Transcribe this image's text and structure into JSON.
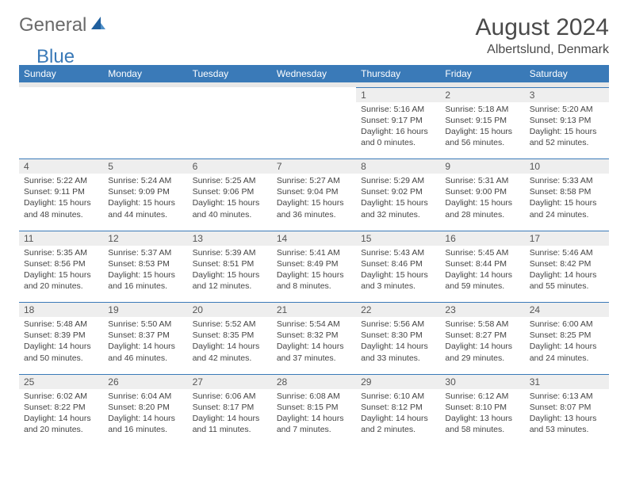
{
  "logo": {
    "text1": "General",
    "text2": "Blue"
  },
  "title": "August 2024",
  "location": "Albertslund, Denmark",
  "colors": {
    "header_bg": "#3a7ab8",
    "header_text": "#ffffff",
    "daynum_bg": "#eeeeee",
    "border": "#3a7ab8",
    "text": "#444444",
    "logo_gray": "#6a6a6a",
    "logo_blue": "#3a7ab8"
  },
  "day_headers": [
    "Sunday",
    "Monday",
    "Tuesday",
    "Wednesday",
    "Thursday",
    "Friday",
    "Saturday"
  ],
  "weeks": [
    {
      "nums": [
        "",
        "",
        "",
        "",
        "1",
        "2",
        "3"
      ],
      "cells": [
        null,
        null,
        null,
        null,
        {
          "sunrise": "5:16 AM",
          "sunset": "9:17 PM",
          "daylight": "16 hours and 0 minutes."
        },
        {
          "sunrise": "5:18 AM",
          "sunset": "9:15 PM",
          "daylight": "15 hours and 56 minutes."
        },
        {
          "sunrise": "5:20 AM",
          "sunset": "9:13 PM",
          "daylight": "15 hours and 52 minutes."
        }
      ]
    },
    {
      "nums": [
        "4",
        "5",
        "6",
        "7",
        "8",
        "9",
        "10"
      ],
      "cells": [
        {
          "sunrise": "5:22 AM",
          "sunset": "9:11 PM",
          "daylight": "15 hours and 48 minutes."
        },
        {
          "sunrise": "5:24 AM",
          "sunset": "9:09 PM",
          "daylight": "15 hours and 44 minutes."
        },
        {
          "sunrise": "5:25 AM",
          "sunset": "9:06 PM",
          "daylight": "15 hours and 40 minutes."
        },
        {
          "sunrise": "5:27 AM",
          "sunset": "9:04 PM",
          "daylight": "15 hours and 36 minutes."
        },
        {
          "sunrise": "5:29 AM",
          "sunset": "9:02 PM",
          "daylight": "15 hours and 32 minutes."
        },
        {
          "sunrise": "5:31 AM",
          "sunset": "9:00 PM",
          "daylight": "15 hours and 28 minutes."
        },
        {
          "sunrise": "5:33 AM",
          "sunset": "8:58 PM",
          "daylight": "15 hours and 24 minutes."
        }
      ]
    },
    {
      "nums": [
        "11",
        "12",
        "13",
        "14",
        "15",
        "16",
        "17"
      ],
      "cells": [
        {
          "sunrise": "5:35 AM",
          "sunset": "8:56 PM",
          "daylight": "15 hours and 20 minutes."
        },
        {
          "sunrise": "5:37 AM",
          "sunset": "8:53 PM",
          "daylight": "15 hours and 16 minutes."
        },
        {
          "sunrise": "5:39 AM",
          "sunset": "8:51 PM",
          "daylight": "15 hours and 12 minutes."
        },
        {
          "sunrise": "5:41 AM",
          "sunset": "8:49 PM",
          "daylight": "15 hours and 8 minutes."
        },
        {
          "sunrise": "5:43 AM",
          "sunset": "8:46 PM",
          "daylight": "15 hours and 3 minutes."
        },
        {
          "sunrise": "5:45 AM",
          "sunset": "8:44 PM",
          "daylight": "14 hours and 59 minutes."
        },
        {
          "sunrise": "5:46 AM",
          "sunset": "8:42 PM",
          "daylight": "14 hours and 55 minutes."
        }
      ]
    },
    {
      "nums": [
        "18",
        "19",
        "20",
        "21",
        "22",
        "23",
        "24"
      ],
      "cells": [
        {
          "sunrise": "5:48 AM",
          "sunset": "8:39 PM",
          "daylight": "14 hours and 50 minutes."
        },
        {
          "sunrise": "5:50 AM",
          "sunset": "8:37 PM",
          "daylight": "14 hours and 46 minutes."
        },
        {
          "sunrise": "5:52 AM",
          "sunset": "8:35 PM",
          "daylight": "14 hours and 42 minutes."
        },
        {
          "sunrise": "5:54 AM",
          "sunset": "8:32 PM",
          "daylight": "14 hours and 37 minutes."
        },
        {
          "sunrise": "5:56 AM",
          "sunset": "8:30 PM",
          "daylight": "14 hours and 33 minutes."
        },
        {
          "sunrise": "5:58 AM",
          "sunset": "8:27 PM",
          "daylight": "14 hours and 29 minutes."
        },
        {
          "sunrise": "6:00 AM",
          "sunset": "8:25 PM",
          "daylight": "14 hours and 24 minutes."
        }
      ]
    },
    {
      "nums": [
        "25",
        "26",
        "27",
        "28",
        "29",
        "30",
        "31"
      ],
      "cells": [
        {
          "sunrise": "6:02 AM",
          "sunset": "8:22 PM",
          "daylight": "14 hours and 20 minutes."
        },
        {
          "sunrise": "6:04 AM",
          "sunset": "8:20 PM",
          "daylight": "14 hours and 16 minutes."
        },
        {
          "sunrise": "6:06 AM",
          "sunset": "8:17 PM",
          "daylight": "14 hours and 11 minutes."
        },
        {
          "sunrise": "6:08 AM",
          "sunset": "8:15 PM",
          "daylight": "14 hours and 7 minutes."
        },
        {
          "sunrise": "6:10 AM",
          "sunset": "8:12 PM",
          "daylight": "14 hours and 2 minutes."
        },
        {
          "sunrise": "6:12 AM",
          "sunset": "8:10 PM",
          "daylight": "13 hours and 58 minutes."
        },
        {
          "sunrise": "6:13 AM",
          "sunset": "8:07 PM",
          "daylight": "13 hours and 53 minutes."
        }
      ]
    }
  ]
}
